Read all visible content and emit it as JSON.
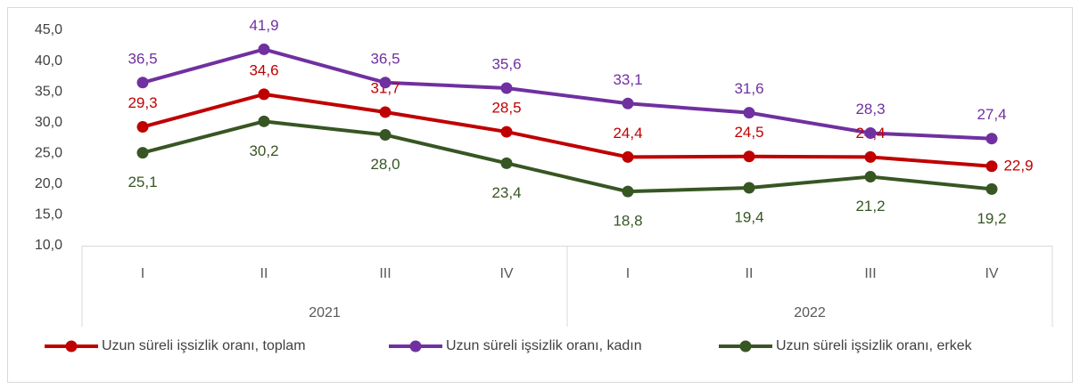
{
  "chart_data": {
    "type": "line",
    "categories": [
      "I",
      "II",
      "III",
      "IV",
      "I",
      "II",
      "III",
      "IV"
    ],
    "category_groups": [
      "2021",
      "2022"
    ],
    "series": [
      {
        "name": "Uzun süreli işsizlik oranı, toplam",
        "color": "#c00000",
        "values": [
          29.3,
          34.6,
          31.7,
          28.5,
          24.4,
          24.5,
          24.4,
          22.9
        ],
        "value_labels": [
          "29,3",
          "34,6",
          "31,7",
          "28,5",
          "24,4",
          "24,5",
          "24,4",
          "22,9"
        ]
      },
      {
        "name": "Uzun süreli işsizlik oranı, kadın",
        "color": "#7030a0",
        "values": [
          36.5,
          41.9,
          36.5,
          35.6,
          33.1,
          31.6,
          28.3,
          27.4
        ],
        "value_labels": [
          "36,5",
          "41,9",
          "36,5",
          "35,6",
          "33,1",
          "31,6",
          "28,3",
          "27,4"
        ]
      },
      {
        "name": "Uzun süreli işsizlik oranı, erkek",
        "color": "#375623",
        "values": [
          25.1,
          30.2,
          28.0,
          23.4,
          18.8,
          19.4,
          21.2,
          19.2
        ],
        "value_labels": [
          "25,1",
          "30,2",
          "28,0",
          "23,4",
          "18,8",
          "19,4",
          "21,2",
          "19,2"
        ]
      }
    ],
    "ylim": [
      10,
      45
    ],
    "yticks": [
      {
        "value": 10,
        "label": "10,0"
      },
      {
        "value": 15,
        "label": "15,0"
      },
      {
        "value": 20,
        "label": "20,0"
      },
      {
        "value": 25,
        "label": "25,0"
      },
      {
        "value": 30,
        "label": "30,0"
      },
      {
        "value": 35,
        "label": "35,0"
      },
      {
        "value": 40,
        "label": "40,0"
      },
      {
        "value": 45,
        "label": "45,0"
      }
    ],
    "grid": false,
    "legend": "bottom"
  }
}
